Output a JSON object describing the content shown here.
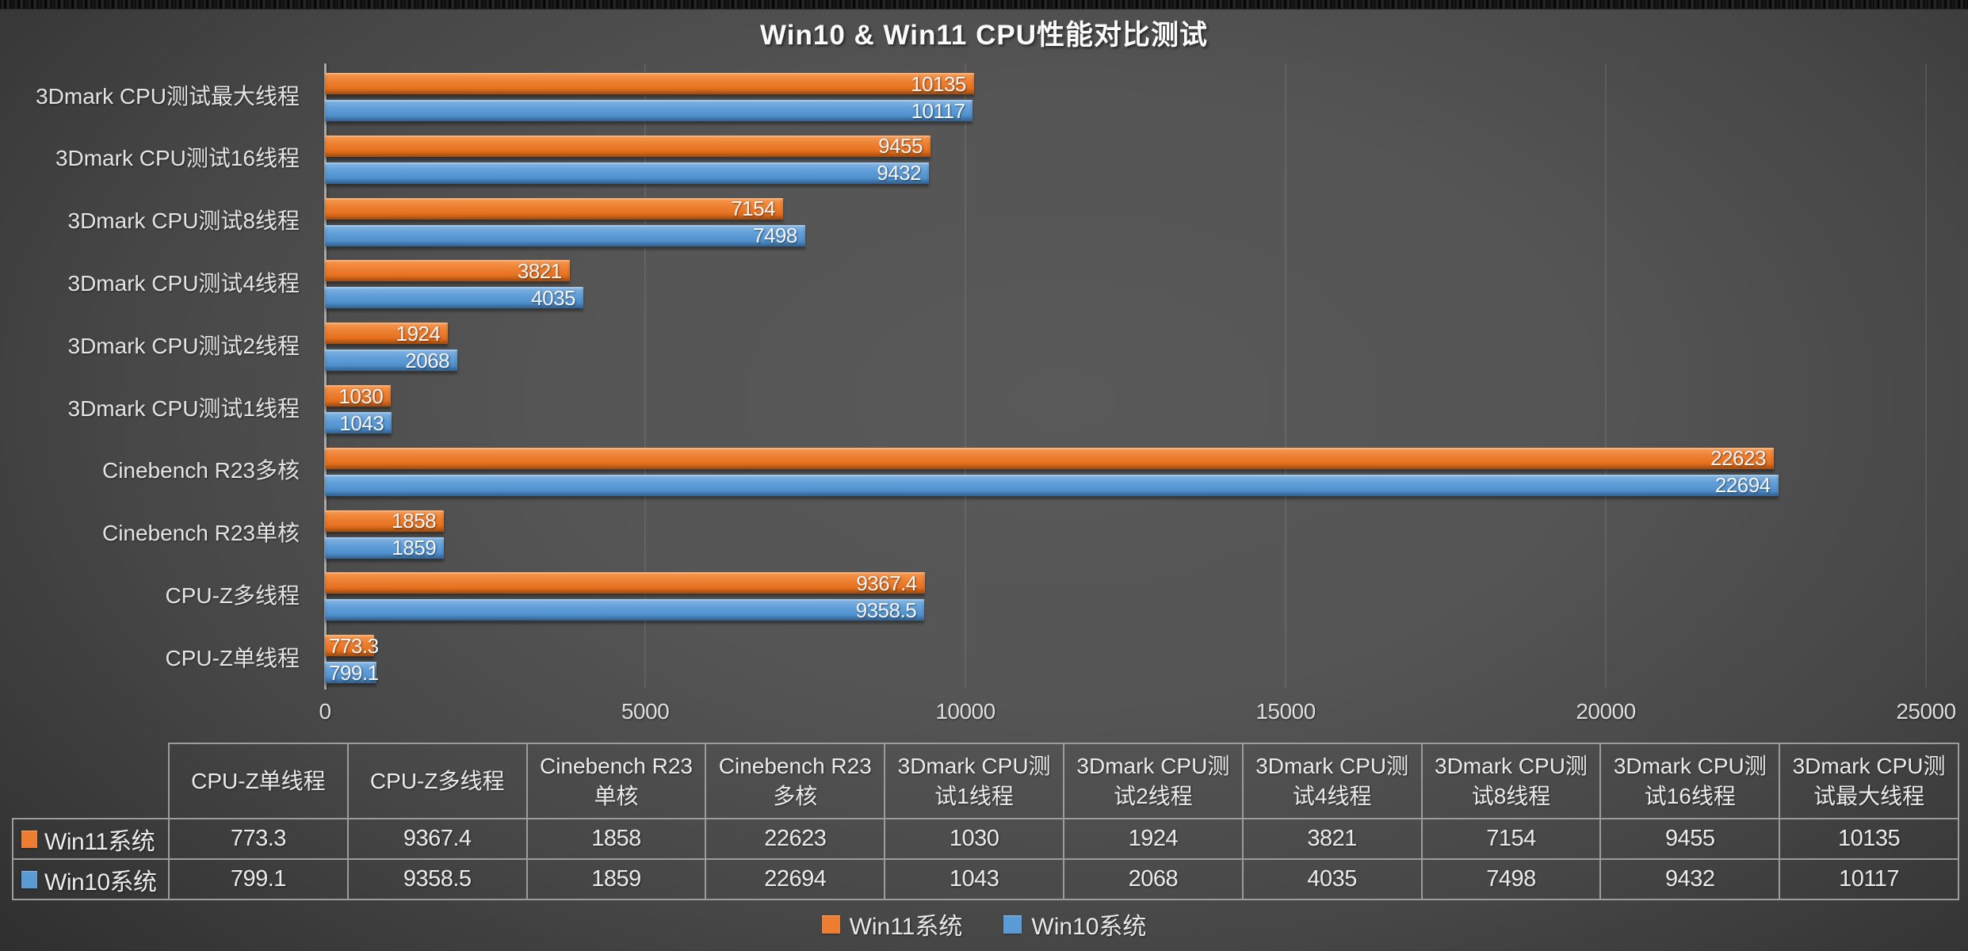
{
  "title": "Win10 & Win11 CPU性能对比测试",
  "colors": {
    "win11_orange": "#ED7D31",
    "win10_blue": "#5B9BD5",
    "background_gray": "#4f4f4f",
    "text_light": "#e9e9e9"
  },
  "chart_data": {
    "type": "bar",
    "orientation": "horizontal",
    "title": "Win10 & Win11 CPU性能对比测试",
    "categories": [
      "3Dmark CPU测试最大线程",
      "3Dmark CPU测试16线程",
      "3Dmark CPU测试8线程",
      "3Dmark CPU测试4线程",
      "3Dmark CPU测试2线程",
      "3Dmark CPU测试1线程",
      "Cinebench R23多核",
      "Cinebench R23单核",
      "CPU-Z多线程",
      "CPU-Z单线程"
    ],
    "series": [
      {
        "name": "Win11系统",
        "color": "#ED7D31",
        "values": [
          10135,
          9455,
          7154,
          3821,
          1924,
          1030,
          22623,
          1858,
          9367.4,
          773.3
        ]
      },
      {
        "name": "Win10系统",
        "color": "#5B9BD5",
        "values": [
          10117,
          9432,
          7498,
          4035,
          2068,
          1043,
          22694,
          1859,
          9358.5,
          799.1
        ]
      }
    ],
    "xlim": [
      0,
      25000
    ],
    "x_ticks": [
      0,
      5000,
      10000,
      15000,
      20000,
      25000
    ],
    "grid": "faint vertical gridlines at each x tick",
    "legend_position": "bottom",
    "value_labels": "inside end of each bar, white"
  },
  "table": {
    "corner_label": "",
    "columns": [
      "CPU-Z单线程",
      "CPU-Z多线程",
      "Cinebench R23单核",
      "Cinebench R23多核",
      "3Dmark CPU测试1线程",
      "3Dmark CPU测试2线程",
      "3Dmark CPU测试4线程",
      "3Dmark CPU测试8线程",
      "3Dmark CPU测试16线程",
      "3Dmark CPU测试最大线程"
    ],
    "rows": [
      {
        "label": "Win11系统",
        "color": "#ED7D31",
        "values": [
          "773.3",
          "9367.4",
          "1858",
          "22623",
          "1030",
          "1924",
          "3821",
          "7154",
          "9455",
          "10135"
        ]
      },
      {
        "label": "Win10系统",
        "color": "#5B9BD5",
        "values": [
          "799.1",
          "9358.5",
          "1859",
          "22694",
          "1043",
          "2068",
          "4035",
          "7498",
          "9432",
          "10117"
        ]
      }
    ]
  },
  "legend": {
    "items": [
      {
        "label": "Win11系统",
        "color": "#ED7D31"
      },
      {
        "label": "Win10系统",
        "color": "#5B9BD5"
      }
    ]
  }
}
